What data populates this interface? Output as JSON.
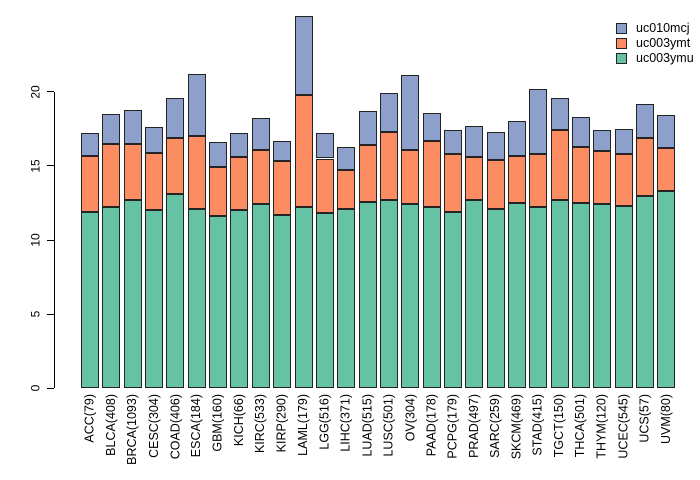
{
  "chart_data": {
    "type": "bar",
    "stacked": true,
    "title": "",
    "xlabel": "",
    "ylabel": "",
    "grid": false,
    "legend_position": "top-right",
    "yticks": [
      0,
      5,
      10,
      15,
      20
    ],
    "ylim": [
      0,
      25.2
    ],
    "categories": [
      "ACC(79)",
      "BLCA(408)",
      "BRCA(1093)",
      "CESC(304)",
      "COAD(406)",
      "ESCA(184)",
      "GBM(160)",
      "KICH(66)",
      "KIRC(533)",
      "KIRP(290)",
      "LAML(179)",
      "LGG(516)",
      "LIHC(371)",
      "LUAD(515)",
      "LUSC(501)",
      "OV(304)",
      "PAAD(178)",
      "PCPG(179)",
      "PRAD(497)",
      "SARC(259)",
      "SKCM(469)",
      "STAD(415)",
      "TGCT(150)",
      "THCA(501)",
      "THYM(120)",
      "UCEC(545)",
      "UCS(57)",
      "UVM(80)"
    ],
    "series": [
      {
        "name": "uc010mcj",
        "color": "#8DA0CB",
        "values": [
          1.5,
          2.0,
          2.3,
          1.7,
          2.7,
          4.2,
          1.7,
          1.6,
          2.1,
          1.4,
          5.3,
          1.7,
          1.6,
          2.3,
          2.6,
          5.0,
          1.9,
          1.6,
          2.1,
          1.9,
          2.3,
          4.4,
          2.2,
          2.0,
          1.4,
          1.7,
          2.3,
          2.2
        ]
      },
      {
        "name": "uc003ymt",
        "color": "#FC8D62",
        "values": [
          3.8,
          4.3,
          3.8,
          3.9,
          3.8,
          4.9,
          3.3,
          3.6,
          3.7,
          3.6,
          7.6,
          3.7,
          2.6,
          3.8,
          4.6,
          3.7,
          4.5,
          3.9,
          2.9,
          3.3,
          3.2,
          3.6,
          4.7,
          3.8,
          3.6,
          3.5,
          3.9,
          2.9
        ]
      },
      {
        "name": "uc003ymu",
        "color": "#66C2A5",
        "values": [
          11.9,
          12.2,
          12.7,
          12.0,
          13.1,
          12.1,
          11.6,
          12.0,
          12.4,
          11.7,
          12.2,
          11.8,
          12.1,
          12.6,
          12.7,
          12.4,
          12.2,
          11.9,
          12.7,
          12.1,
          12.5,
          12.2,
          12.7,
          12.5,
          12.4,
          12.3,
          13.0,
          13.3
        ]
      }
    ],
    "stack_bottom_to_top": [
      "uc003ymu",
      "uc003ymt",
      "uc010mcj"
    ],
    "totals": [
      17.2,
      18.5,
      18.8,
      17.6,
      19.6,
      21.2,
      16.6,
      17.2,
      18.2,
      16.7,
      25.1,
      17.2,
      16.3,
      18.7,
      19.9,
      21.1,
      18.6,
      17.4,
      17.7,
      17.3,
      18.0,
      20.2,
      19.6,
      18.3,
      17.4,
      17.5,
      19.2,
      18.4
    ],
    "colors": {
      "bar_border": "#242424",
      "axis": "#000000",
      "background": "#ffffff"
    }
  }
}
